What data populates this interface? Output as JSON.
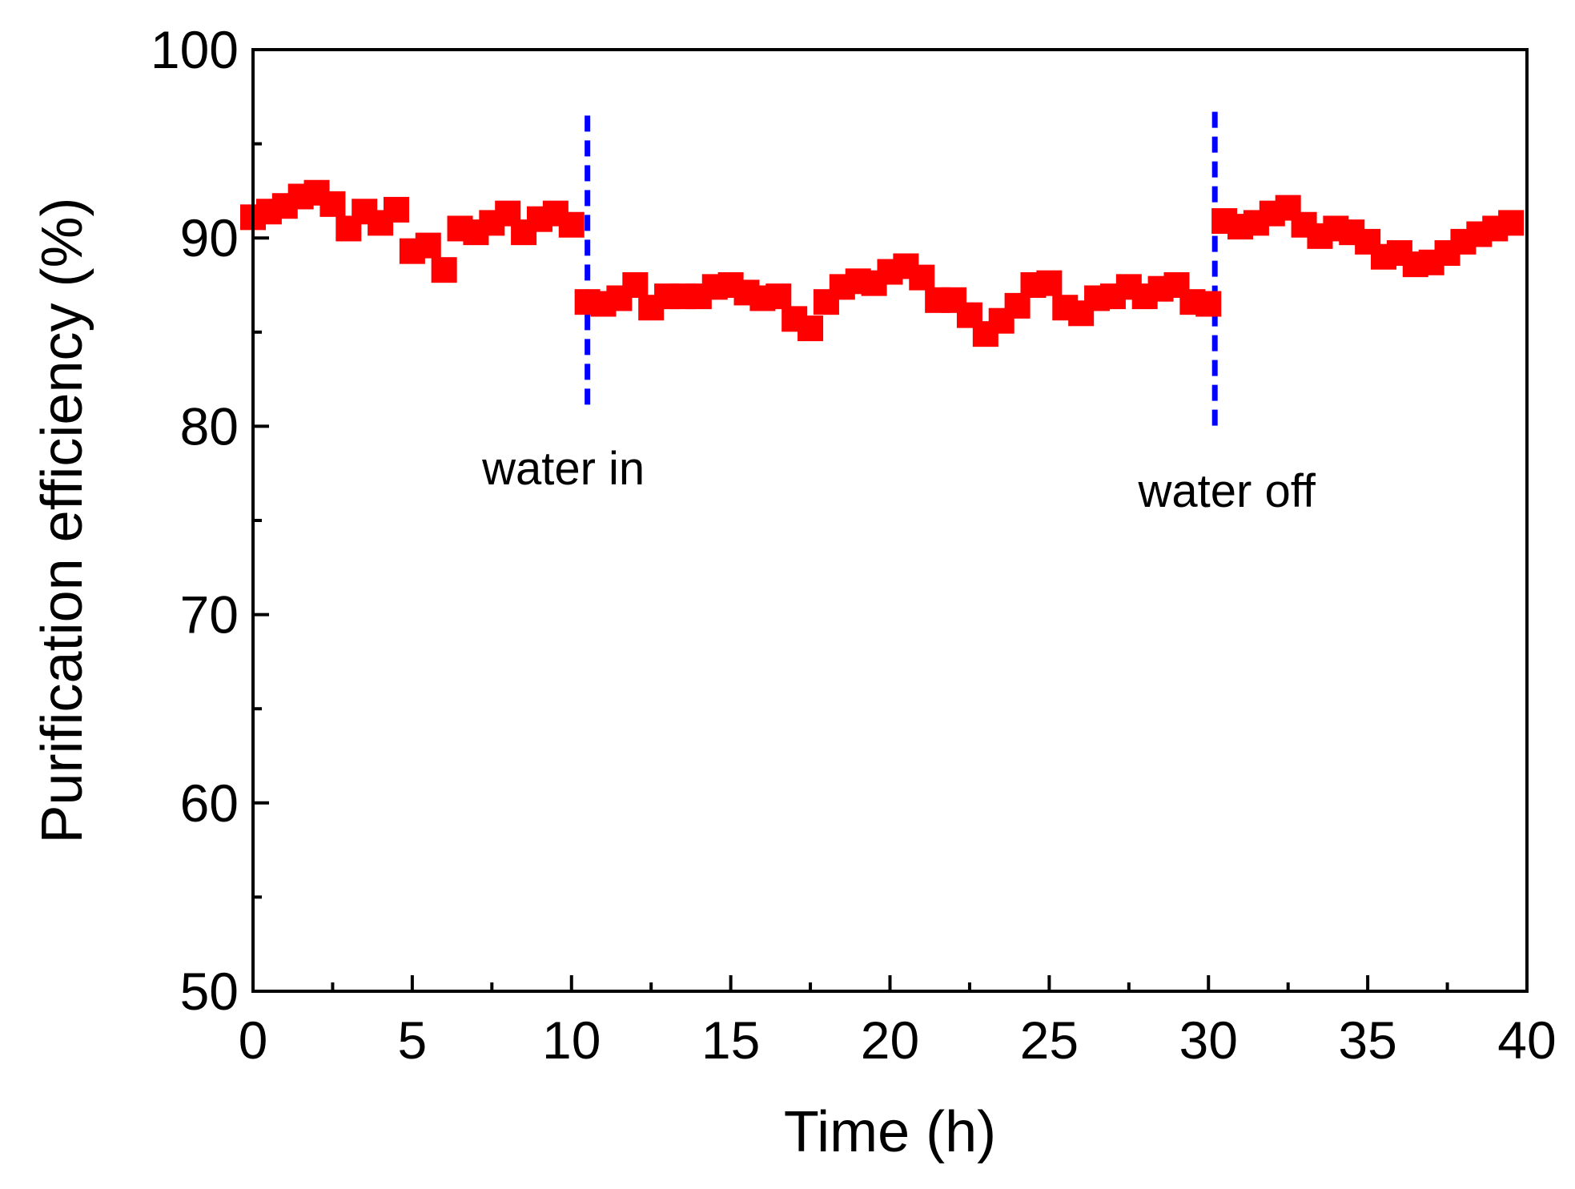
{
  "chart_data": {
    "type": "scatter",
    "title": "",
    "xlabel": "Time (h)",
    "ylabel": "Purification efficiency (%)",
    "xlim": [
      0,
      40
    ],
    "ylim": [
      50,
      100
    ],
    "xticks": [
      0,
      5,
      10,
      15,
      20,
      25,
      30,
      35,
      40
    ],
    "yticks": [
      50,
      60,
      70,
      80,
      90,
      100
    ],
    "grid": false,
    "series": [
      {
        "name": "Purification efficiency",
        "marker": "square",
        "color": "#ff0000",
        "x": [
          0,
          0.5,
          1,
          1.5,
          2,
          2.5,
          3,
          3.5,
          4,
          4.5,
          5,
          5.5,
          6,
          6.5,
          7,
          7.5,
          8,
          8.5,
          9,
          9.5,
          10,
          10.5,
          11,
          11.5,
          12,
          12.5,
          13,
          13.5,
          14,
          14.5,
          15,
          15.5,
          16,
          16.5,
          17,
          17.5,
          18,
          18.5,
          19,
          19.5,
          20,
          20.5,
          21,
          21.5,
          22,
          22.5,
          23,
          23.5,
          24,
          24.5,
          25,
          25.5,
          26,
          26.5,
          27,
          27.5,
          28,
          28.5,
          29,
          29.5,
          30,
          30.5,
          31,
          31.5,
          32,
          32.5,
          33,
          33.5,
          34,
          34.5,
          35,
          35.5,
          36,
          36.5,
          37,
          37.5,
          38,
          38.5,
          39,
          39.5
        ],
        "y": [
          91.1,
          91.4,
          91.7,
          92.2,
          92.4,
          91.8,
          90.5,
          91.4,
          90.8,
          91.5,
          89.3,
          89.6,
          88.3,
          90.5,
          90.3,
          90.8,
          91.3,
          90.3,
          91.0,
          91.3,
          90.7,
          86.6,
          86.5,
          86.8,
          87.5,
          86.3,
          86.9,
          86.9,
          86.9,
          87.4,
          87.5,
          87.1,
          86.8,
          86.9,
          85.7,
          85.2,
          86.6,
          87.4,
          87.7,
          87.6,
          88.2,
          88.5,
          87.9,
          86.7,
          86.7,
          85.9,
          84.9,
          85.6,
          86.4,
          87.5,
          87.6,
          86.3,
          86.0,
          86.8,
          86.9,
          87.4,
          86.9,
          87.3,
          87.5,
          86.6,
          86.5,
          90.9,
          90.6,
          90.8,
          91.3,
          91.6,
          90.7,
          90.1,
          90.5,
          90.3,
          89.8,
          89.0,
          89.2,
          88.6,
          88.7,
          89.2,
          89.8,
          90.2,
          90.5,
          90.8
        ]
      }
    ],
    "annotations": [
      {
        "text": "water in",
        "x": 10.5,
        "color": "#0000ff",
        "line_from": 81,
        "line_to": 96.5
      },
      {
        "text": "water off",
        "x": 30.2,
        "color": "#0000ff",
        "line_from": 80,
        "line_to": 96.7
      }
    ]
  }
}
